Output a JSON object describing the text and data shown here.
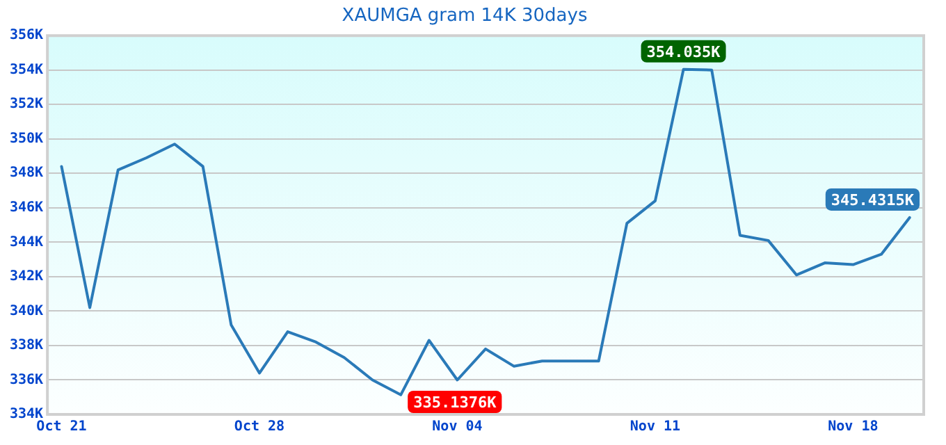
{
  "chart_data": {
    "type": "line",
    "title": "XAUMGA gram 14K 30days",
    "x": [
      "--10-21",
      "--10-22",
      "--10-23",
      "--10-24",
      "--10-25",
      "--10-26",
      "--10-27",
      "--10-28",
      "--10-29",
      "--10-30",
      "--10-31",
      "--11-01",
      "--11-02",
      "--11-03",
      "--11-04",
      "--11-05",
      "--11-06",
      "--11-07",
      "--11-08",
      "--11-09",
      "--11-10",
      "--11-11",
      "--11-12",
      "--11-13",
      "--11-14",
      "--11-15",
      "--11-16",
      "--11-17",
      "--11-18",
      "--11-19",
      "--11-20"
    ],
    "series": [
      {
        "color": "#2a7ab8",
        "values": [
          348.4,
          340.2,
          348.2,
          348.9,
          349.7,
          348.4,
          339.2,
          336.4,
          338.8,
          338.2,
          337.3,
          336.0,
          335.1376,
          338.3,
          336.0,
          337.8,
          336.8,
          337.1,
          337.1,
          337.1,
          345.1,
          346.4,
          354.035,
          354.0,
          344.4,
          344.1,
          342.1,
          342.8,
          342.7,
          343.3,
          345.4315
        ]
      }
    ],
    "xlim": [
      "--10-20T12:00",
      "--11-20T12:00"
    ],
    "xticks": [
      {
        "value": "--10-21",
        "label": "Oct 21"
      },
      {
        "value": "--10-28",
        "label": "Oct 28"
      },
      {
        "value": "--11-04",
        "label": "Nov 04"
      },
      {
        "value": "--11-11",
        "label": "Nov 11"
      },
      {
        "value": "--11-18",
        "label": "Nov 18"
      }
    ],
    "ylim": [
      334,
      356
    ],
    "yticks": [
      {
        "value": 334,
        "label": "334K"
      },
      {
        "value": 336,
        "label": "336K"
      },
      {
        "value": 338,
        "label": "338K"
      },
      {
        "value": 340,
        "label": "340K"
      },
      {
        "value": 342,
        "label": "342K"
      },
      {
        "value": 344,
        "label": "344K"
      },
      {
        "value": 346,
        "label": "346K"
      },
      {
        "value": 348,
        "label": "348K"
      },
      {
        "value": 350,
        "label": "350K"
      },
      {
        "value": 352,
        "label": "352K"
      },
      {
        "value": 354,
        "label": "354K"
      },
      {
        "value": 356,
        "label": "356K"
      }
    ],
    "annotations": [
      {
        "text": "354.035K",
        "x": "--11-12",
        "y": 354.035
      },
      {
        "text": "335.1376K",
        "x": "--11-02",
        "y": 335.1376
      },
      {
        "text": "345.4315K",
        "x": "--11-20",
        "y": 345.4315
      }
    ],
    "grid": "y",
    "marker": "none",
    "line_style": "solid",
    "legend": false
  }
}
